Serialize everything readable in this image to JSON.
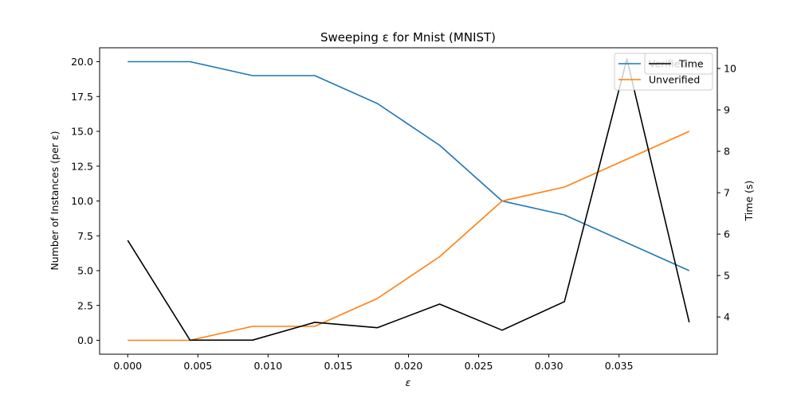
{
  "chart_data": {
    "type": "line",
    "title": "Sweeping ε for Mnist (MNIST)",
    "xlabel": "ε",
    "ylabel": "Number of Instances (per ε)",
    "ylabel_right": "Time (s)",
    "x": [
      0.0,
      0.00444,
      0.00889,
      0.01333,
      0.01778,
      0.02222,
      0.02667,
      0.03111,
      0.03556,
      0.04
    ],
    "xlim": [
      -0.002,
      0.042
    ],
    "x_ticks": [
      0.0,
      0.005,
      0.01,
      0.015,
      0.02,
      0.025,
      0.03,
      0.035
    ],
    "x_tick_labels": [
      "0.000",
      "0.005",
      "0.010",
      "0.015",
      "0.020",
      "0.025",
      "0.030",
      "0.035"
    ],
    "ylim": [
      -1.0,
      21.0
    ],
    "y_ticks": [
      0.0,
      2.5,
      5.0,
      7.5,
      10.0,
      12.5,
      15.0,
      17.5,
      20.0
    ],
    "y_tick_labels": [
      "0.0",
      "2.5",
      "5.0",
      "7.5",
      "10.0",
      "12.5",
      "15.0",
      "17.5",
      "20.0"
    ],
    "ylim_right": [
      3.1,
      10.5
    ],
    "y_ticks_right": [
      4,
      5,
      6,
      7,
      8,
      9,
      10
    ],
    "y_tick_labels_right": [
      "4",
      "5",
      "6",
      "7",
      "8",
      "9",
      "10"
    ],
    "series": [
      {
        "name": "Verified",
        "axis": "left",
        "color": "#1f77b4",
        "values": [
          20,
          20,
          19,
          19,
          17,
          14,
          10,
          9,
          7,
          5
        ]
      },
      {
        "name": "Unverified",
        "axis": "left",
        "color": "#ff7f0e",
        "values": [
          0,
          0,
          1,
          1,
          3,
          6,
          10,
          11,
          13,
          15
        ]
      },
      {
        "name": "Time",
        "axis": "right",
        "color": "#000000",
        "values": [
          5.85,
          3.44,
          3.44,
          3.87,
          3.74,
          4.31,
          3.68,
          4.37,
          10.23,
          3.87
        ]
      }
    ],
    "legend_left": {
      "placement": "top-right",
      "entries": [
        "Verified",
        "Unverified"
      ]
    },
    "legend_right": {
      "placement": "top-right",
      "entries": [
        "Time"
      ]
    },
    "grid": false
  }
}
